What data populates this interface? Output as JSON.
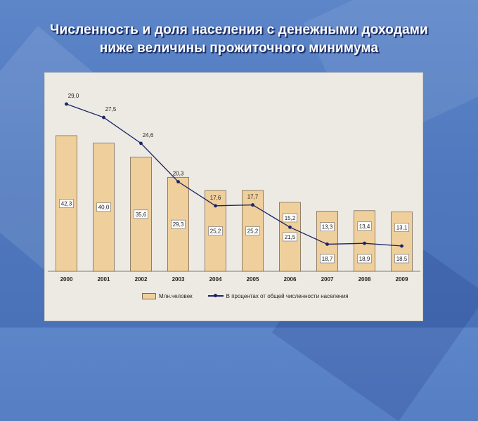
{
  "title": {
    "line1": "Численность и доля населения с денежными доходами",
    "line2": "ниже величины прожиточного минимума"
  },
  "chart_data": {
    "type": "bar",
    "categories": [
      "2000",
      "2001",
      "2002",
      "2003",
      "2004",
      "2005",
      "2006",
      "2007",
      "2008",
      "2009"
    ],
    "series": [
      {
        "name": "Млн.человек",
        "type": "bar",
        "values": [
          42.3,
          40.0,
          35.6,
          29.3,
          25.2,
          25.2,
          21.5,
          18.7,
          18.9,
          18.5
        ],
        "labels": [
          "42,3",
          "40,0",
          "35,6",
          "29,3",
          "25,2",
          "25,2",
          "21,5",
          "18,7",
          "18,9",
          "18,5"
        ],
        "color": "#efcf9c"
      },
      {
        "name": "В процентах от общей численности населения",
        "type": "line",
        "values": [
          29.0,
          27.5,
          24.6,
          20.3,
          17.6,
          17.7,
          15.2,
          13.3,
          13.4,
          13.1
        ],
        "labels": [
          "29,0",
          "27,5",
          "24,6",
          "20,3",
          "17,6",
          "17,7",
          "15,2",
          "13,3",
          "13,4",
          "13,1"
        ],
        "color": "#1a2366"
      }
    ],
    "legend_position": "bottom",
    "grid": false
  }
}
